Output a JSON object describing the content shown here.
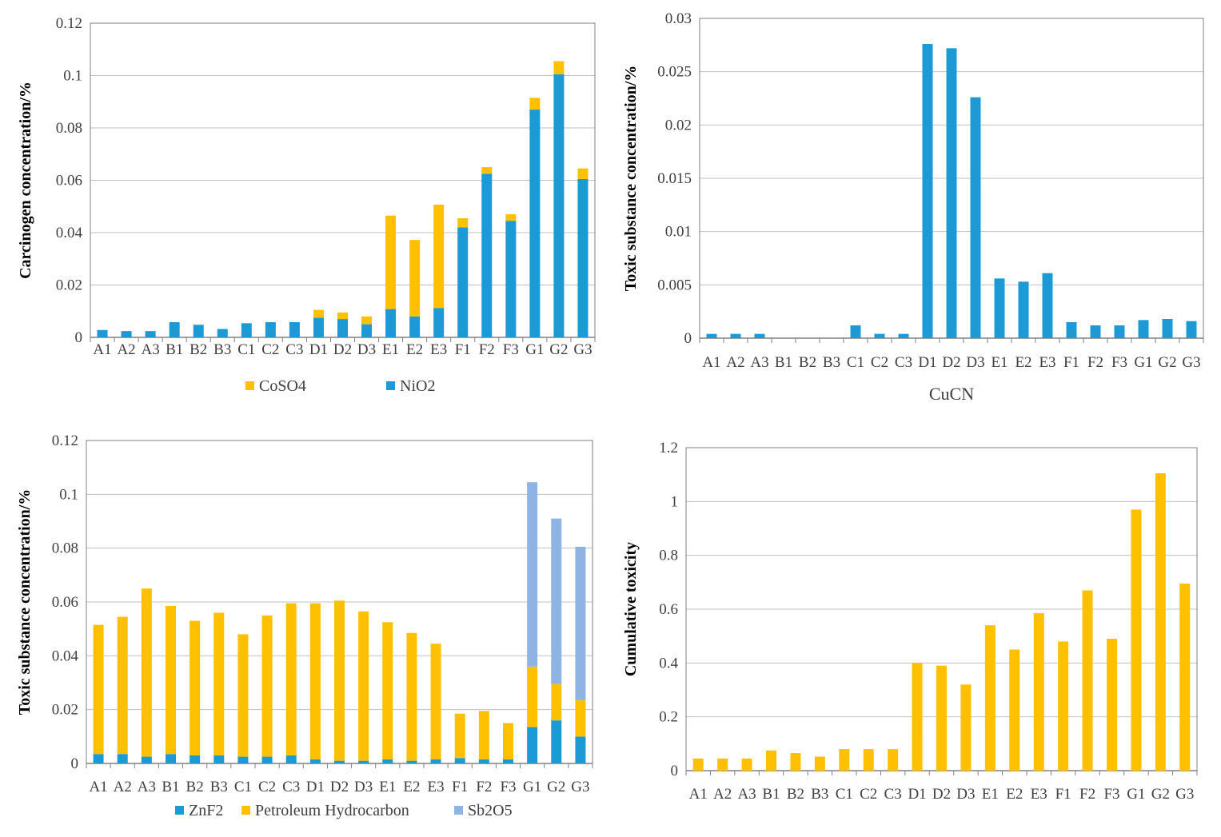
{
  "colors": {
    "cobalt": "#ffc000",
    "nickel": "#1b9ad6",
    "antimony": "#8eb4e3",
    "grid": "#c0c0c0",
    "axis": "#000000"
  },
  "chart_data": [
    {
      "type": "bar",
      "stacked": true,
      "ylabel": "Carcinogen concentration/%",
      "xlabel": "",
      "ylim": [
        0,
        0.12
      ],
      "yticks": [
        "0",
        "0.02",
        "0.04",
        "0.06",
        "0.08",
        "0.1",
        "0.12"
      ],
      "categories": [
        "A1",
        "A2",
        "A3",
        "B1",
        "B2",
        "B3",
        "C1",
        "C2",
        "C3",
        "D1",
        "D2",
        "D3",
        "E1",
        "E2",
        "E3",
        "F1",
        "F2",
        "F3",
        "G1",
        "G2",
        "G3"
      ],
      "series": [
        {
          "name": "NiO2",
          "color": "#1b9ad6",
          "values": [
            0.0028,
            0.0024,
            0.0024,
            0.0058,
            0.0048,
            0.0032,
            0.0054,
            0.0058,
            0.0058,
            0.0075,
            0.007,
            0.005,
            0.0108,
            0.008,
            0.0112,
            0.042,
            0.0625,
            0.0445,
            0.087,
            0.1005,
            0.0605
          ]
        },
        {
          "name": "CoSO4",
          "color": "#ffc000",
          "values": [
            0,
            0,
            0,
            0,
            0,
            0,
            0,
            0,
            0,
            0.003,
            0.0025,
            0.003,
            0.0357,
            0.0292,
            0.0395,
            0.0035,
            0.0025,
            0.0025,
            0.0045,
            0.005,
            0.004
          ]
        }
      ],
      "legend": [
        "CoSO4",
        "NiO2"
      ]
    },
    {
      "type": "bar",
      "ylabel": "Toxic substance concentration/%",
      "xlabel": "CuCN",
      "ylim": [
        0,
        0.03
      ],
      "yticks": [
        "0",
        "0.005",
        "0.01",
        "0.015",
        "0.02",
        "0.025",
        "0.03"
      ],
      "categories": [
        "A1",
        "A2",
        "A3",
        "B1",
        "B2",
        "B3",
        "C1",
        "C2",
        "C3",
        "D1",
        "D2",
        "D3",
        "E1",
        "E2",
        "E3",
        "F1",
        "F2",
        "F3",
        "G1",
        "G2",
        "G3"
      ],
      "series": [
        {
          "name": "CuCN",
          "color": "#1b9ad6",
          "values": [
            0.0004,
            0.0004,
            0.0004,
            0,
            0,
            0,
            0.0012,
            0.0004,
            0.0004,
            0.0276,
            0.0272,
            0.0226,
            0.0056,
            0.0053,
            0.0061,
            0.0015,
            0.0012,
            0.0012,
            0.0017,
            0.0018,
            0.0016
          ]
        }
      ]
    },
    {
      "type": "bar",
      "stacked": true,
      "ylabel": "Toxic substance concentration/%",
      "xlabel": "",
      "ylim": [
        0,
        0.12
      ],
      "yticks": [
        "0",
        "0.02",
        "0.04",
        "0.06",
        "0.08",
        "0.1",
        "0.12"
      ],
      "categories": [
        "A1",
        "A2",
        "A3",
        "B1",
        "B2",
        "B3",
        "C1",
        "C2",
        "C3",
        "D1",
        "D2",
        "D3",
        "E1",
        "E2",
        "E3",
        "F1",
        "F2",
        "F3",
        "G1",
        "G2",
        "G3"
      ],
      "series": [
        {
          "name": "ZnF2",
          "color": "#1b9ad6",
          "values": [
            0.0035,
            0.0035,
            0.0025,
            0.0035,
            0.003,
            0.003,
            0.0025,
            0.0025,
            0.003,
            0.0015,
            0.001,
            0.001,
            0.0015,
            0.001,
            0.0015,
            0.002,
            0.0015,
            0.0015,
            0.0135,
            0.016,
            0.01
          ]
        },
        {
          "name": "Petroleum Hydrocarbon",
          "color": "#ffc000",
          "values": [
            0.048,
            0.051,
            0.0625,
            0.055,
            0.05,
            0.053,
            0.0455,
            0.0525,
            0.0565,
            0.058,
            0.0595,
            0.0555,
            0.051,
            0.0475,
            0.043,
            0.0165,
            0.018,
            0.0135,
            0.0225,
            0.0135,
            0.0135
          ]
        },
        {
          "name": "Sb2O5",
          "color": "#8eb4e3",
          "values": [
            0,
            0,
            0,
            0,
            0,
            0,
            0,
            0,
            0,
            0,
            0,
            0,
            0,
            0,
            0,
            0,
            0,
            0,
            0.0685,
            0.0615,
            0.057
          ]
        }
      ],
      "legend": [
        "ZnF2",
        "Petroleum Hydrocarbon",
        "Sb2O5"
      ]
    },
    {
      "type": "bar",
      "ylabel": "Cumulative toxicity",
      "xlabel": "",
      "ylim": [
        0,
        1.2
      ],
      "yticks": [
        "0",
        "0.2",
        "0.4",
        "0.6",
        "0.8",
        "1",
        "1.2"
      ],
      "categories": [
        "A1",
        "A2",
        "A3",
        "B1",
        "B2",
        "B3",
        "C1",
        "C2",
        "C3",
        "D1",
        "D2",
        "D3",
        "E1",
        "E2",
        "E3",
        "F1",
        "F2",
        "F3",
        "G1",
        "G2",
        "G3"
      ],
      "series": [
        {
          "name": "Cumulative toxicity",
          "color": "#ffc000",
          "values": [
            0.045,
            0.045,
            0.045,
            0.075,
            0.065,
            0.052,
            0.08,
            0.08,
            0.08,
            0.4,
            0.39,
            0.32,
            0.54,
            0.45,
            0.585,
            0.48,
            0.67,
            0.49,
            0.97,
            1.105,
            0.695
          ]
        }
      ]
    }
  ]
}
